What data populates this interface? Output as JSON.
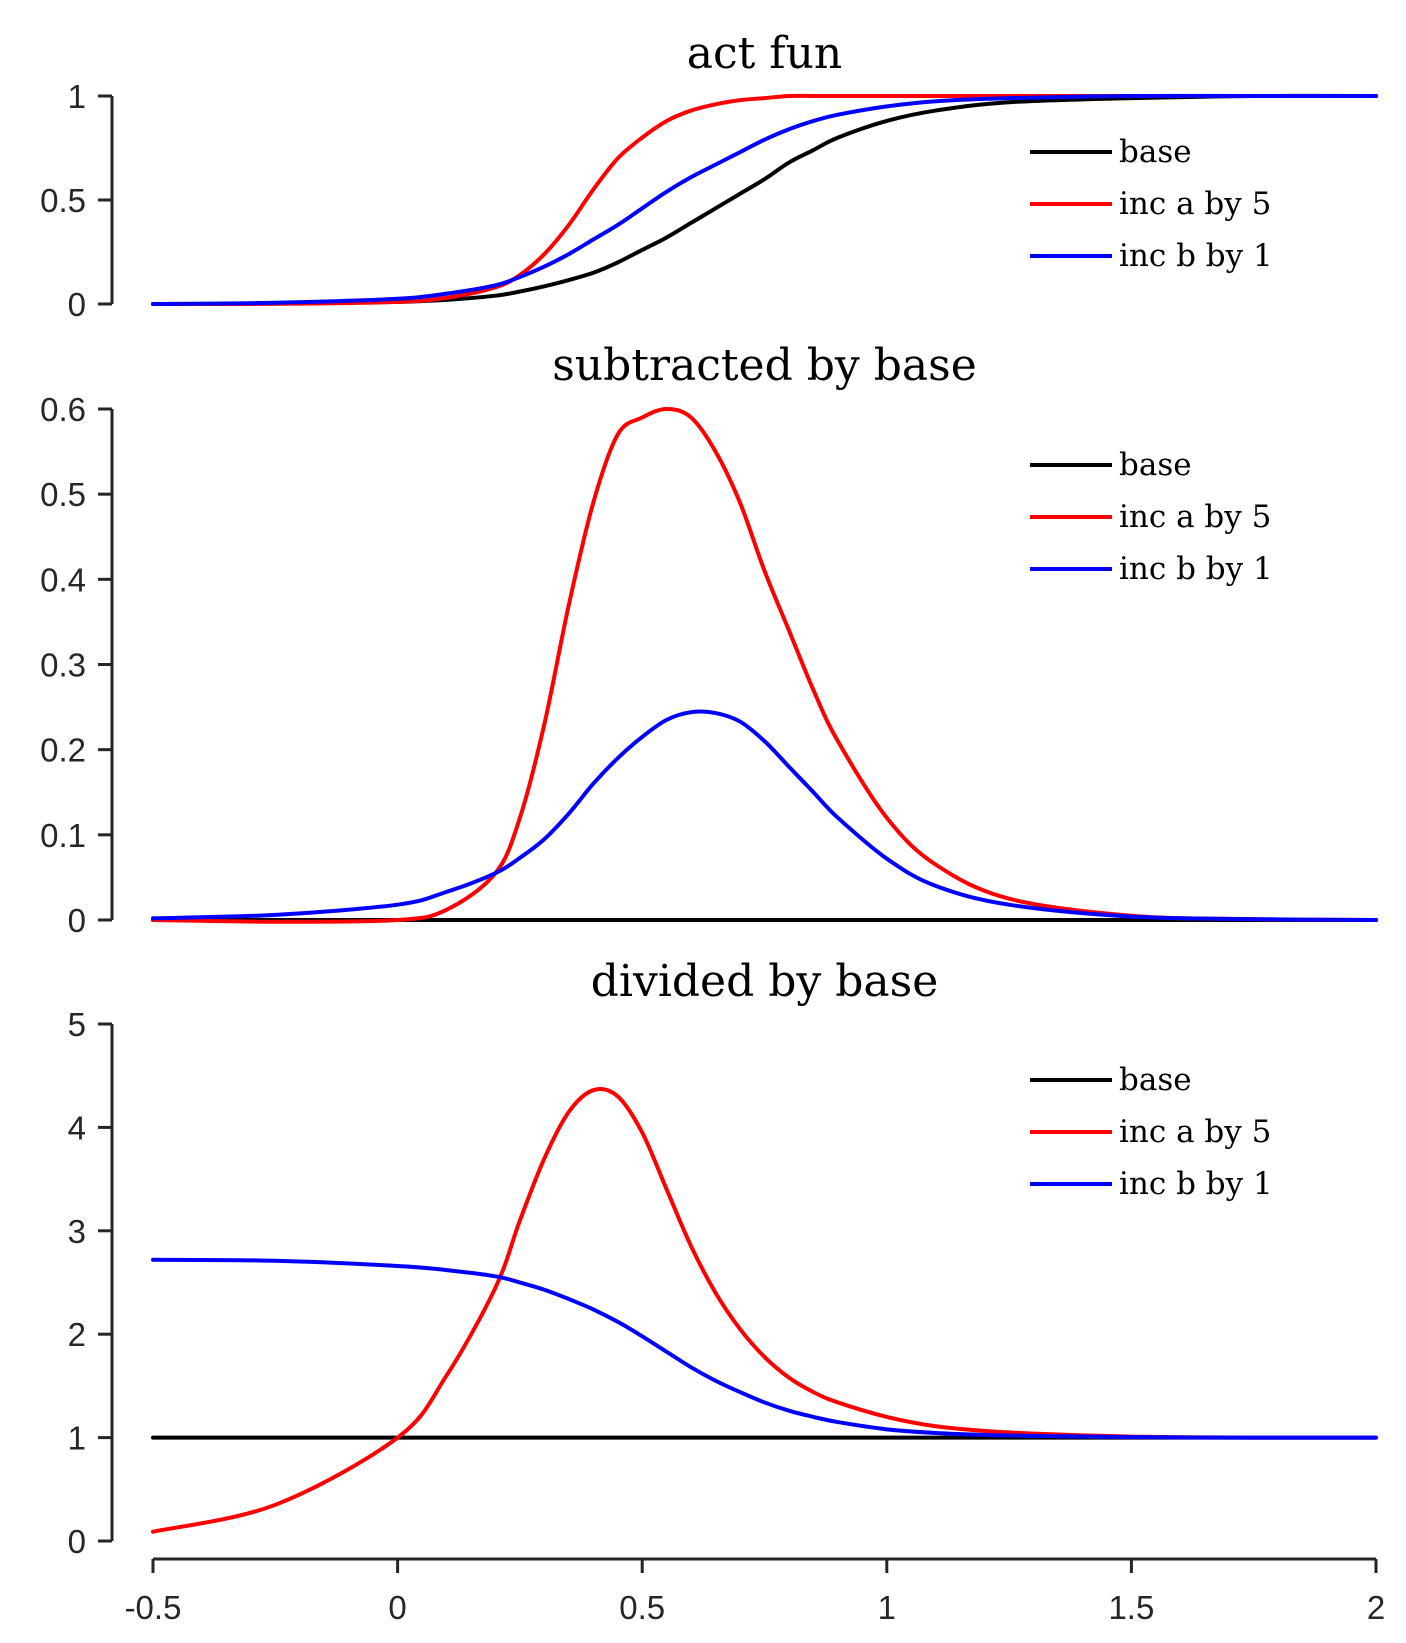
{
  "chart_data": [
    {
      "type": "line",
      "title": "act fun",
      "xlim": [
        -0.5,
        2
      ],
      "ylim": [
        0,
        1
      ],
      "yticks": [
        0,
        0.5,
        1
      ],
      "ytick_labels": [
        "0",
        "0.5",
        "1"
      ],
      "grid": false,
      "legend": "top-right",
      "x": [
        -0.5,
        -0.25,
        0,
        0.1,
        0.2,
        0.25,
        0.3,
        0.35,
        0.4,
        0.45,
        0.5,
        0.55,
        0.6,
        0.65,
        0.7,
        0.75,
        0.8,
        0.85,
        0.9,
        1.0,
        1.1,
        1.25,
        1.5,
        1.75,
        2.0
      ],
      "series": [
        {
          "name": "base",
          "color": "#000000",
          "values": [
            0.0,
            0.002,
            0.01,
            0.02,
            0.04,
            0.06,
            0.085,
            0.115,
            0.15,
            0.2,
            0.26,
            0.32,
            0.39,
            0.46,
            0.53,
            0.6,
            0.68,
            0.74,
            0.8,
            0.88,
            0.93,
            0.97,
            0.99,
            1.0,
            1.0
          ]
        },
        {
          "name": "inc a by 5",
          "color": "#ff0000",
          "values": [
            0.0,
            0.001,
            0.01,
            0.03,
            0.08,
            0.14,
            0.24,
            0.38,
            0.55,
            0.7,
            0.8,
            0.88,
            0.93,
            0.96,
            0.98,
            0.99,
            1.0,
            1.0,
            1.0,
            1.0,
            1.0,
            1.0,
            1.0,
            1.0,
            1.0
          ]
        },
        {
          "name": "inc b by 1",
          "color": "#0000ff",
          "values": [
            0.0,
            0.006,
            0.025,
            0.05,
            0.09,
            0.13,
            0.18,
            0.24,
            0.31,
            0.38,
            0.46,
            0.54,
            0.61,
            0.67,
            0.73,
            0.79,
            0.84,
            0.88,
            0.91,
            0.95,
            0.975,
            0.99,
            1.0,
            1.0,
            1.0
          ]
        }
      ]
    },
    {
      "type": "line",
      "title": "subtracted by base",
      "xlim": [
        -0.5,
        2
      ],
      "ylim": [
        0,
        0.6
      ],
      "yticks": [
        0,
        0.1,
        0.2,
        0.3,
        0.4,
        0.5,
        0.6
      ],
      "ytick_labels": [
        "0",
        "0.1",
        "0.2",
        "0.3",
        "0.4",
        "0.5",
        "0.6"
      ],
      "grid": false,
      "legend": "top-right",
      "x": [
        -0.5,
        -0.25,
        0,
        0.1,
        0.2,
        0.25,
        0.3,
        0.35,
        0.4,
        0.45,
        0.5,
        0.55,
        0.6,
        0.65,
        0.7,
        0.75,
        0.8,
        0.85,
        0.9,
        1.0,
        1.1,
        1.25,
        1.5,
        1.75,
        2.0
      ],
      "series": [
        {
          "name": "base",
          "color": "#000000",
          "values": [
            0,
            0,
            0,
            0,
            0,
            0,
            0,
            0,
            0,
            0,
            0,
            0,
            0,
            0,
            0,
            0,
            0,
            0,
            0,
            0,
            0,
            0,
            0,
            0,
            0
          ]
        },
        {
          "name": "inc a by 5",
          "color": "#ff0000",
          "values": [
            0.0,
            -0.002,
            0.0,
            0.012,
            0.055,
            0.12,
            0.23,
            0.37,
            0.49,
            0.57,
            0.59,
            0.6,
            0.59,
            0.55,
            0.49,
            0.41,
            0.34,
            0.27,
            0.21,
            0.12,
            0.065,
            0.025,
            0.005,
            0.001,
            0.0
          ]
        },
        {
          "name": "inc b by 1",
          "color": "#0000ff",
          "values": [
            0.002,
            0.006,
            0.018,
            0.033,
            0.055,
            0.073,
            0.095,
            0.125,
            0.16,
            0.19,
            0.215,
            0.235,
            0.244,
            0.243,
            0.233,
            0.21,
            0.18,
            0.15,
            0.12,
            0.072,
            0.04,
            0.018,
            0.004,
            0.001,
            0.0
          ]
        }
      ]
    },
    {
      "type": "line",
      "title": "divided by base",
      "xlim": [
        -0.5,
        2
      ],
      "ylim": [
        0,
        5
      ],
      "yticks": [
        0,
        1,
        2,
        3,
        4,
        5
      ],
      "ytick_labels": [
        "0",
        "1",
        "2",
        "3",
        "4",
        "5"
      ],
      "xticks": [
        -0.5,
        0,
        0.5,
        1,
        1.5,
        2
      ],
      "xtick_labels": [
        "-0.5",
        "0",
        "0.5",
        "1",
        "1.5",
        "2"
      ],
      "grid": false,
      "legend": "top-right",
      "x": [
        -0.5,
        -0.25,
        0,
        0.1,
        0.2,
        0.25,
        0.3,
        0.35,
        0.4,
        0.45,
        0.5,
        0.55,
        0.6,
        0.65,
        0.7,
        0.75,
        0.8,
        0.85,
        0.9,
        1.0,
        1.1,
        1.25,
        1.5,
        1.75,
        2.0
      ],
      "series": [
        {
          "name": "base",
          "color": "#000000",
          "values": [
            1,
            1,
            1,
            1,
            1,
            1,
            1,
            1,
            1,
            1,
            1,
            1,
            1,
            1,
            1,
            1,
            1,
            1,
            1,
            1,
            1,
            1,
            1,
            1,
            1
          ]
        },
        {
          "name": "inc a by 5",
          "color": "#ff0000",
          "values": [
            0.09,
            0.35,
            1.0,
            1.6,
            2.45,
            3.1,
            3.7,
            4.15,
            4.36,
            4.3,
            3.95,
            3.4,
            2.85,
            2.4,
            2.05,
            1.78,
            1.58,
            1.44,
            1.34,
            1.2,
            1.11,
            1.05,
            1.01,
            1.0,
            1.0
          ]
        },
        {
          "name": "inc b by 1",
          "color": "#0000ff",
          "values": [
            2.72,
            2.71,
            2.66,
            2.62,
            2.56,
            2.5,
            2.43,
            2.34,
            2.24,
            2.12,
            1.98,
            1.83,
            1.68,
            1.55,
            1.44,
            1.34,
            1.26,
            1.2,
            1.15,
            1.08,
            1.045,
            1.02,
            1.005,
            1.0,
            1.0
          ]
        }
      ]
    }
  ]
}
